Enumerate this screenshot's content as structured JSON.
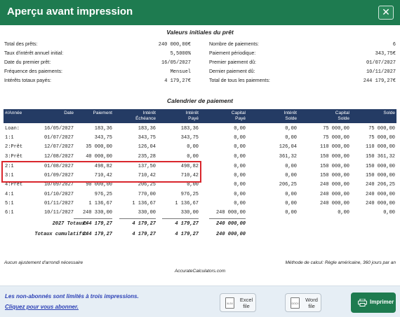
{
  "window": {
    "title": "Aperçu avant impression",
    "close_glyph": "✕"
  },
  "summary": {
    "heading": "Valeurs initiales du prêt",
    "left": [
      {
        "label": "Total des prêts:",
        "value": "240 000,00€"
      },
      {
        "label": "Taux d'intérêt annuel initial:",
        "value": "5,5000%"
      },
      {
        "label": "Date du premier prêt:",
        "value": "16/05/2027"
      },
      {
        "label": "Fréquence des paiements:",
        "value": "Mensuel"
      },
      {
        "label": "Intérêts totaux payés:",
        "value": "4 179,27€"
      }
    ],
    "right": [
      {
        "label": "Nombre de paiements:",
        "value": "6"
      },
      {
        "label": "Paiement périodique:",
        "value": "343,75€"
      },
      {
        "label": "Premier paiement dû:",
        "value": "01/07/2027"
      },
      {
        "label": "Dernier paiement dû:",
        "value": "10/11/2027"
      },
      {
        "label": "Total de tous les paiements:",
        "value": "244 179,27€"
      }
    ]
  },
  "schedule": {
    "heading": "Calendrier de paiement",
    "columns": [
      {
        "l1": "",
        "l2": "#/Année"
      },
      {
        "l1": "",
        "l2": "Date"
      },
      {
        "l1": "",
        "l2": "Paiement"
      },
      {
        "l1": "Intérêt",
        "l2": "Échéance"
      },
      {
        "l1": "Intérêt",
        "l2": "Payé"
      },
      {
        "l1": "Capital",
        "l2": "Payé"
      },
      {
        "l1": "Intérêt",
        "l2": "Solde"
      },
      {
        "l1": "Capital",
        "l2": "Solde"
      },
      {
        "l1": "",
        "l2": "Solde"
      }
    ],
    "rows": [
      [
        "Loan:",
        "16/05/2027",
        "183,36",
        "183,36",
        "183,36",
        "0,00",
        "0,00",
        "75 000,00",
        "75 000,00"
      ],
      [
        "1:1",
        "01/07/2027",
        "343,75",
        "343,75",
        "343,75",
        "0,00",
        "0,00",
        "75 000,00",
        "75 000,00"
      ],
      [
        "2:Prêt",
        "12/07/2027",
        "35 000,00",
        "126,04",
        "0,00",
        "0,00",
        "126,04",
        "110 000,00",
        "110 000,00"
      ],
      [
        "3:Prêt",
        "12/08/2027",
        "40 000,00",
        "235,28",
        "0,00",
        "0,00",
        "361,32",
        "150 000,00",
        "150 361,32"
      ],
      [
        "2:1",
        "01/08/2027",
        "498,82",
        "137,50",
        "498,82",
        "0,00",
        "0,00",
        "150 000,00",
        "150 000,00"
      ],
      [
        "3:1",
        "01/09/2027",
        "710,42",
        "710,42",
        "710,42",
        "0,00",
        "0,00",
        "150 000,00",
        "150 000,00"
      ],
      [
        "4:Prêt",
        "10/09/2027",
        "90 000,00",
        "206,25",
        "0,00",
        "0,00",
        "206,25",
        "240 000,00",
        "240 206,25"
      ],
      [
        "4:1",
        "01/10/2027",
        "976,25",
        "770,00",
        "976,25",
        "0,00",
        "0,00",
        "240 000,00",
        "240 000,00"
      ],
      [
        "5:1",
        "01/11/2027",
        "1 136,67",
        "1 136,67",
        "1 136,67",
        "0,00",
        "0,00",
        "240 000,00",
        "240 000,00"
      ],
      [
        "6:1",
        "10/11/2027",
        "240 330,00",
        "330,00",
        "330,00",
        "240 000,00",
        "0,00",
        "0,00",
        "0,00"
      ]
    ],
    "totals": [
      {
        "label": "2027 Totaux:",
        "pay": "244 179,27",
        "due": "4 179,27",
        "paid": "4 179,27",
        "cap": "240 000,00"
      },
      {
        "label": "Totaux cumulatifs:",
        "pay": "244 179,27",
        "due": "4 179,27",
        "paid": "4 179,27",
        "cap": "240 000,00"
      }
    ]
  },
  "notes": {
    "rounding": "Aucun ajustement d'arrondi nécessaire",
    "method": "Méthode de calcul: Règle américaine, 360 jours par an",
    "credit": "AccurateCalculators.com"
  },
  "footer": {
    "promo": "Les non-abonnés sont limités à trois impressions.",
    "subscribe_link": "Cliquez pour vous abonner.",
    "excel": {
      "icon_text": "XLSX",
      "label": "Excel file"
    },
    "word": {
      "icon_text": "DOCX",
      "label": "Word file"
    },
    "print_label": "Imprimer",
    "print_icon": "printer-icon"
  },
  "colors": {
    "title_bar": "#1e7b50",
    "table_header": "#243b64",
    "highlight": "#d9262c",
    "link": "#2a3fb5"
  }
}
